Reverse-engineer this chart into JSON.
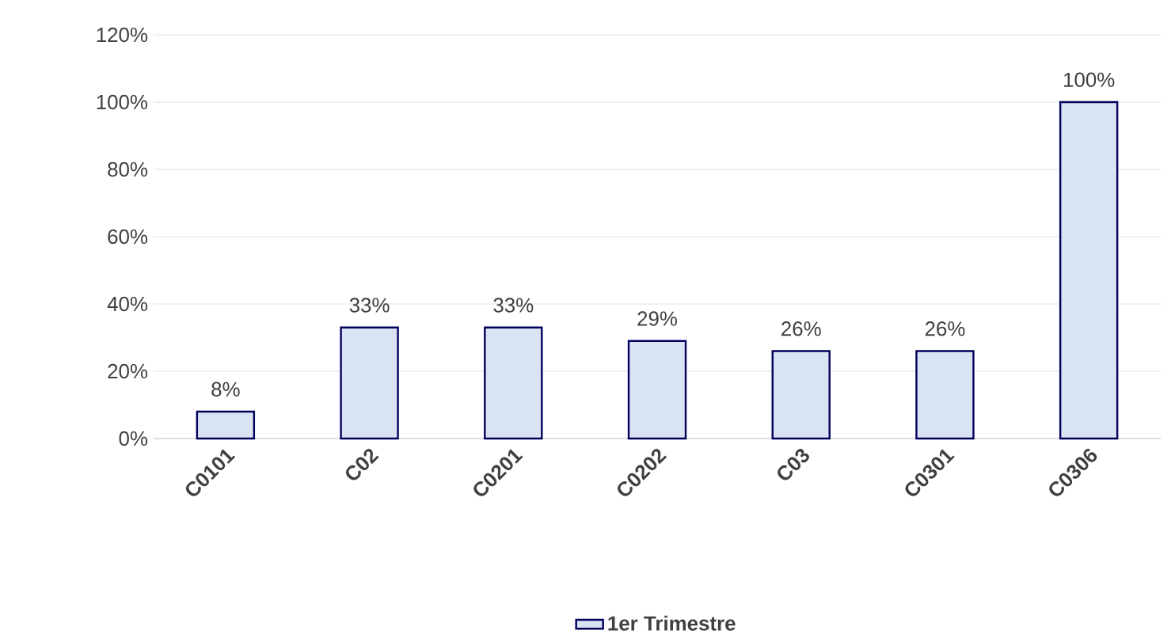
{
  "chart_data": {
    "type": "bar",
    "categories": [
      "C0101",
      "C02",
      "C0201",
      "C0202",
      "C03",
      "C0301",
      "C0306"
    ],
    "series": [
      {
        "name": "1er Trimestre",
        "color": "#dae3f3",
        "values": [
          8,
          33,
          33,
          29,
          26,
          26,
          100
        ],
        "value_labels": [
          "8%",
          "33%",
          "33%",
          "29%",
          "26%",
          "26%",
          "100%"
        ]
      }
    ],
    "ylim": [
      0,
      120
    ],
    "yticks": [
      {
        "value": 0,
        "label": "0%"
      },
      {
        "value": 20,
        "label": "20%"
      },
      {
        "value": 40,
        "label": "40%"
      },
      {
        "value": 60,
        "label": "60%"
      },
      {
        "value": 80,
        "label": "80%"
      },
      {
        "value": 100,
        "label": "100%"
      },
      {
        "value": 120,
        "label": "120%"
      }
    ],
    "grid": "y",
    "legend": "bottom"
  }
}
